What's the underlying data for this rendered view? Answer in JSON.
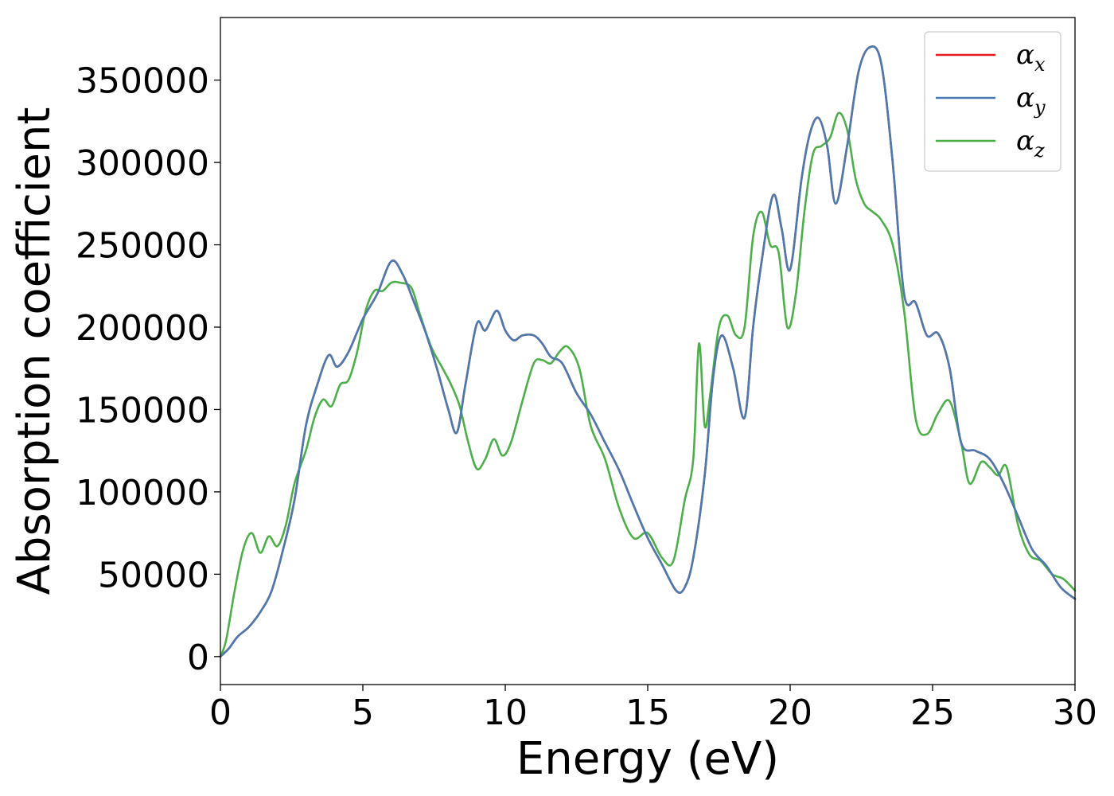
{
  "chart_data": {
    "type": "line",
    "xlabel": "Energy (eV)",
    "ylabel": "Absorption coefficient",
    "xlim": [
      0,
      30
    ],
    "ylim": [
      -17000,
      388000
    ],
    "xticks": [
      0,
      5,
      10,
      15,
      20,
      25,
      30
    ],
    "xtick_labels": [
      "0",
      "5",
      "10",
      "15",
      "20",
      "25",
      "30"
    ],
    "yticks": [
      0,
      50000,
      100000,
      150000,
      200000,
      250000,
      300000,
      350000
    ],
    "ytick_labels": [
      "0",
      "50000",
      "100000",
      "150000",
      "200000",
      "250000",
      "300000",
      "350000"
    ],
    "grid": false,
    "legend_position": "top-right",
    "series": [
      {
        "name": "α",
        "subscript": "x",
        "color": "#e41a1c",
        "x": [
          0,
          0.3,
          0.6,
          1.0,
          1.4,
          1.8,
          2.2,
          2.6,
          3.0,
          3.4,
          3.8,
          4.1,
          4.5,
          5.0,
          5.5,
          6.0,
          6.4,
          6.8,
          7.2,
          7.6,
          8.0,
          8.3,
          8.6,
          9.0,
          9.3,
          9.7,
          10.0,
          10.3,
          10.6,
          11.0,
          11.3,
          11.6,
          12.0,
          12.5,
          13.0,
          13.5,
          14.0,
          14.5,
          15.0,
          15.5,
          16.0,
          16.3,
          16.6,
          17.0,
          17.3,
          17.6,
          18.0,
          18.4,
          18.7,
          19.0,
          19.4,
          19.7,
          20.0,
          20.4,
          20.7,
          21.0,
          21.3,
          21.6,
          22.0,
          22.4,
          22.8,
          23.2,
          23.6,
          24.0,
          24.4,
          24.8,
          25.2,
          25.6,
          26.0,
          26.5,
          27.0,
          27.5,
          28.0,
          28.5,
          29.0,
          29.5,
          30.0
        ],
        "y": [
          0,
          5000,
          12000,
          18000,
          27000,
          40000,
          65000,
          95000,
          140000,
          165000,
          183000,
          176000,
          185000,
          205000,
          220000,
          240000,
          232000,
          215000,
          197000,
          175000,
          150000,
          136000,
          165000,
          202000,
          198000,
          210000,
          198000,
          192000,
          195000,
          195000,
          190000,
          182000,
          178000,
          160000,
          147000,
          130000,
          113000,
          92000,
          72000,
          56000,
          40000,
          42000,
          60000,
          110000,
          170000,
          195000,
          175000,
          145000,
          200000,
          240000,
          280000,
          260000,
          235000,
          290000,
          318000,
          327000,
          310000,
          275000,
          310000,
          355000,
          370000,
          360000,
          300000,
          220000,
          215000,
          195000,
          196000,
          175000,
          130000,
          125000,
          120000,
          105000,
          85000,
          65000,
          55000,
          42000,
          35000
        ]
      },
      {
        "name": "α",
        "subscript": "y",
        "color": "#4a7ab0",
        "x": [
          0,
          0.3,
          0.6,
          1.0,
          1.4,
          1.8,
          2.2,
          2.6,
          3.0,
          3.4,
          3.8,
          4.1,
          4.5,
          5.0,
          5.5,
          6.0,
          6.4,
          6.8,
          7.2,
          7.6,
          8.0,
          8.3,
          8.6,
          9.0,
          9.3,
          9.7,
          10.0,
          10.3,
          10.6,
          11.0,
          11.3,
          11.6,
          12.0,
          12.5,
          13.0,
          13.5,
          14.0,
          14.5,
          15.0,
          15.5,
          16.0,
          16.3,
          16.6,
          17.0,
          17.3,
          17.6,
          18.0,
          18.4,
          18.7,
          19.0,
          19.4,
          19.7,
          20.0,
          20.4,
          20.7,
          21.0,
          21.3,
          21.6,
          22.0,
          22.4,
          22.8,
          23.2,
          23.6,
          24.0,
          24.4,
          24.8,
          25.2,
          25.6,
          26.0,
          26.5,
          27.0,
          27.5,
          28.0,
          28.5,
          29.0,
          29.5,
          30.0
        ],
        "y": [
          0,
          5000,
          12000,
          18000,
          27000,
          40000,
          65000,
          95000,
          140000,
          165000,
          183000,
          176000,
          185000,
          205000,
          220000,
          240000,
          232000,
          215000,
          197000,
          175000,
          150000,
          136000,
          165000,
          202000,
          198000,
          210000,
          198000,
          192000,
          195000,
          195000,
          190000,
          182000,
          178000,
          160000,
          147000,
          130000,
          113000,
          92000,
          72000,
          56000,
          40000,
          42000,
          60000,
          110000,
          170000,
          195000,
          175000,
          145000,
          200000,
          240000,
          280000,
          260000,
          235000,
          290000,
          318000,
          327000,
          310000,
          275000,
          310000,
          355000,
          370000,
          360000,
          300000,
          220000,
          215000,
          195000,
          196000,
          175000,
          130000,
          125000,
          120000,
          105000,
          85000,
          65000,
          55000,
          42000,
          35000
        ]
      },
      {
        "name": "α",
        "subscript": "z",
        "color": "#4daf4a",
        "x": [
          0,
          0.2,
          0.5,
          0.8,
          1.1,
          1.4,
          1.7,
          2.0,
          2.3,
          2.6,
          3.0,
          3.3,
          3.6,
          3.9,
          4.2,
          4.5,
          4.8,
          5.1,
          5.4,
          5.7,
          6.0,
          6.3,
          6.7,
          7.0,
          7.4,
          7.8,
          8.1,
          8.4,
          8.7,
          9.0,
          9.3,
          9.6,
          9.9,
          10.2,
          10.6,
          11.0,
          11.3,
          11.6,
          11.9,
          12.2,
          12.6,
          13.0,
          13.5,
          14.0,
          14.5,
          15.0,
          15.5,
          15.9,
          16.3,
          16.6,
          16.8,
          17.0,
          17.2,
          17.5,
          17.8,
          18.1,
          18.4,
          18.7,
          19.0,
          19.3,
          19.6,
          19.9,
          20.2,
          20.5,
          20.8,
          21.1,
          21.4,
          21.7,
          22.0,
          22.3,
          22.6,
          22.9,
          23.2,
          23.6,
          24.0,
          24.4,
          24.8,
          25.2,
          25.6,
          26.0,
          26.3,
          26.7,
          27.0,
          27.3,
          27.6,
          28.0,
          28.4,
          28.8,
          29.2,
          29.6,
          30.0
        ],
        "y": [
          0,
          10000,
          40000,
          65000,
          75000,
          63000,
          73000,
          67000,
          80000,
          105000,
          125000,
          145000,
          156000,
          152000,
          165000,
          168000,
          185000,
          210000,
          222000,
          222000,
          227000,
          227000,
          224000,
          208000,
          188000,
          175000,
          165000,
          152000,
          130000,
          114000,
          120000,
          132000,
          122000,
          130000,
          155000,
          178000,
          180000,
          178000,
          185000,
          188000,
          175000,
          140000,
          120000,
          90000,
          72000,
          75000,
          60000,
          58000,
          95000,
          120000,
          190000,
          140000,
          160000,
          200000,
          207000,
          195000,
          200000,
          255000,
          270000,
          250000,
          245000,
          200000,
          220000,
          270000,
          305000,
          310000,
          315000,
          330000,
          320000,
          290000,
          275000,
          270000,
          265000,
          250000,
          210000,
          145000,
          135000,
          148000,
          155000,
          130000,
          105000,
          118000,
          115000,
          110000,
          115000,
          80000,
          62000,
          58000,
          50000,
          47000,
          40000
        ]
      }
    ]
  }
}
